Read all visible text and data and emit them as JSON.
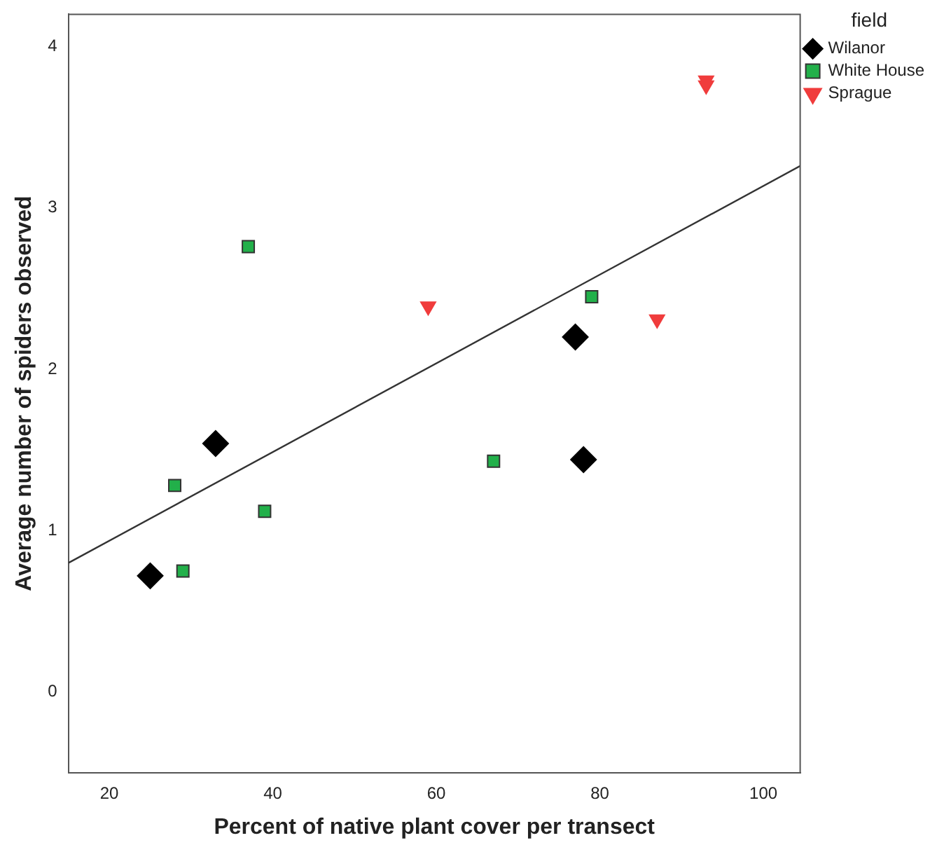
{
  "chart_data": {
    "type": "scatter",
    "xlabel": "Percent of native plant cover per transect",
    "ylabel": "Average number of spiders observed",
    "legend_title": "field",
    "legend": "top right",
    "grid": false,
    "xlim": [
      15,
      104.5
    ],
    "xticks": [
      20,
      40,
      60,
      80,
      100
    ],
    "ylim": [
      -0.5,
      4.2
    ],
    "yticks": [
      0,
      1,
      2,
      3,
      4
    ],
    "series": [
      {
        "name": "Wilanor",
        "color": "#000000",
        "marker": "diamond",
        "x": [
          25,
          33,
          77,
          78
        ],
        "values": [
          0.72,
          1.54,
          2.2,
          1.44
        ]
      },
      {
        "name": "White House",
        "color": "#22b04a",
        "marker": "square",
        "x": [
          28,
          29,
          37,
          39,
          67,
          79
        ],
        "values": [
          1.28,
          0.75,
          2.76,
          1.12,
          1.43,
          2.45
        ]
      },
      {
        "name": "Sprague",
        "color": "#f03c3c",
        "marker": "triangle",
        "x": [
          59,
          87,
          93,
          93
        ],
        "values": [
          2.39,
          2.31,
          3.79,
          3.76
        ]
      },
      {
        "type": "line",
        "color": "#333333",
        "marker": "none",
        "x": [
          15,
          104.5
        ],
        "values": [
          0.8,
          3.26
        ]
      }
    ]
  }
}
